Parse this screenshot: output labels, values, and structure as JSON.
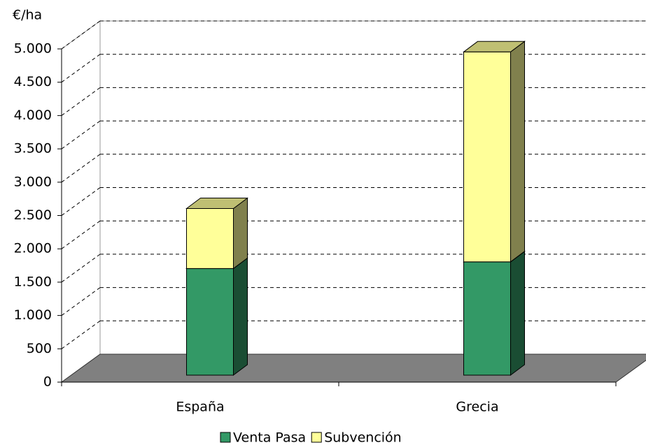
{
  "chart_data": {
    "type": "bar3d_stacked",
    "y_label": "€/ha",
    "categories": [
      "España",
      "Grecia"
    ],
    "series": [
      {
        "name": "Venta Pasa",
        "color": "#339966",
        "values": [
          1600,
          1700
        ]
      },
      {
        "name": "Subvención",
        "color": "#ffff99",
        "values": [
          900,
          3150
        ]
      }
    ],
    "ylim": [
      0,
      5000
    ],
    "yticks": [
      0,
      500,
      {
        "value": 1000,
        "label": "1.000"
      },
      {
        "value": 1500,
        "label": "1.500"
      },
      {
        "value": 2000,
        "label": "2.000"
      },
      {
        "value": 2500,
        "label": "2.500"
      },
      {
        "value": 3000,
        "label": "3.000"
      },
      {
        "value": 3500,
        "label": "3.500"
      },
      {
        "value": 4000,
        "label": "4.000"
      },
      {
        "value": 4500,
        "label": "4.500"
      },
      {
        "value": 5000,
        "label": "5.000"
      }
    ],
    "grid": true,
    "legend": "bottom"
  }
}
